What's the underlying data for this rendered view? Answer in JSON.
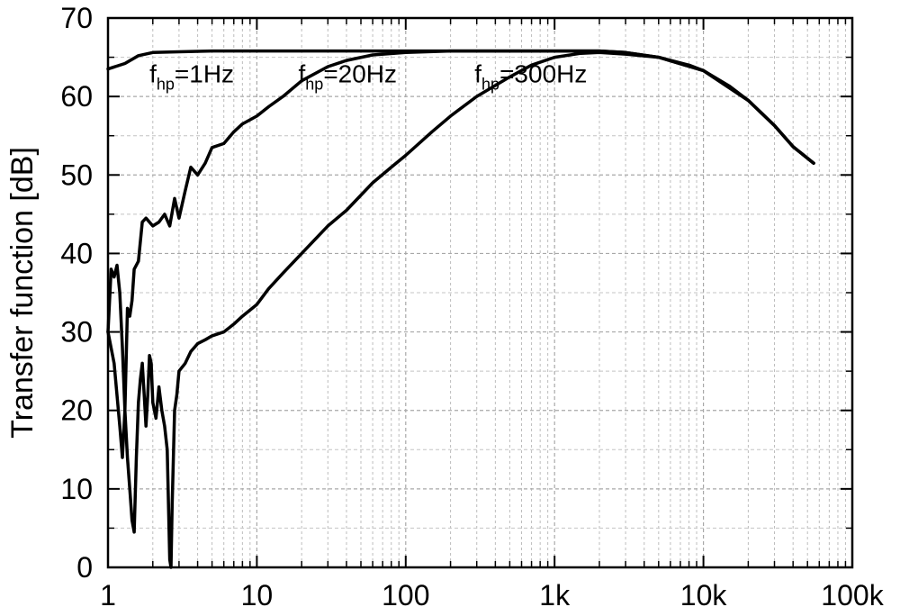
{
  "chart_data": {
    "type": "line",
    "title": "",
    "xlabel": "",
    "ylabel": "Transfer function [dB]",
    "xscale": "log",
    "xlim": [
      1,
      100000
    ],
    "ylim": [
      0,
      70
    ],
    "grid": true,
    "xticks": [
      {
        "value": 1,
        "label": "1"
      },
      {
        "value": 10,
        "label": "10"
      },
      {
        "value": 100,
        "label": "100"
      },
      {
        "value": 1000,
        "label": "1k"
      },
      {
        "value": 10000,
        "label": "10k"
      },
      {
        "value": 100000,
        "label": "100k"
      }
    ],
    "yticks": [
      0,
      10,
      20,
      30,
      40,
      50,
      60,
      70
    ],
    "series": [
      {
        "color": "#000000",
        "points": [
          [
            1,
            63.5
          ],
          [
            1.3,
            64.2
          ],
          [
            1.6,
            65.2
          ],
          [
            2,
            65.6
          ],
          [
            3,
            65.7
          ],
          [
            5,
            65.8
          ],
          [
            10,
            65.8
          ],
          [
            100,
            65.8
          ],
          [
            1000,
            65.8
          ],
          [
            2000,
            65.8
          ],
          [
            3000,
            65.6
          ],
          [
            5000,
            65.0
          ],
          [
            8000,
            64.0
          ],
          [
            10000,
            63.3
          ],
          [
            15000,
            61.3
          ],
          [
            20000,
            59.5
          ],
          [
            30000,
            56.3
          ],
          [
            40000,
            53.6
          ],
          [
            55000,
            51.5
          ]
        ]
      },
      {
        "color": "#000000",
        "points": [
          [
            1,
            30
          ],
          [
            1.1,
            26
          ],
          [
            1.2,
            18
          ],
          [
            1.25,
            14
          ],
          [
            1.3,
            20
          ],
          [
            1.35,
            33
          ],
          [
            1.4,
            32
          ],
          [
            1.45,
            34
          ],
          [
            1.5,
            38
          ],
          [
            1.6,
            39
          ],
          [
            1.7,
            44
          ],
          [
            1.8,
            44.5
          ],
          [
            2,
            43.5
          ],
          [
            2.2,
            44
          ],
          [
            2.4,
            45
          ],
          [
            2.6,
            43.5
          ],
          [
            2.8,
            47
          ],
          [
            3,
            44.5
          ],
          [
            3.3,
            48
          ],
          [
            3.6,
            51
          ],
          [
            4,
            50
          ],
          [
            4.5,
            51.5
          ],
          [
            5,
            53.5
          ],
          [
            6,
            54
          ],
          [
            7,
            55.5
          ],
          [
            8,
            56.5
          ],
          [
            10,
            57.5
          ],
          [
            12,
            58.7
          ],
          [
            15,
            60
          ],
          [
            20,
            62
          ],
          [
            30,
            63.8
          ],
          [
            40,
            64.6
          ],
          [
            60,
            65.3
          ],
          [
            100,
            65.6
          ],
          [
            200,
            65.8
          ],
          [
            1000,
            65.8
          ],
          [
            2000,
            65.8
          ],
          [
            3000,
            65.6
          ],
          [
            5000,
            65.0
          ],
          [
            10000,
            63.3
          ],
          [
            20000,
            59.5
          ],
          [
            30000,
            56.3
          ],
          [
            40000,
            53.6
          ],
          [
            55000,
            51.5
          ]
        ]
      },
      {
        "color": "#000000",
        "points": [
          [
            1,
            30
          ],
          [
            1.05,
            38
          ],
          [
            1.1,
            37
          ],
          [
            1.15,
            38.5
          ],
          [
            1.2,
            35
          ],
          [
            1.25,
            28
          ],
          [
            1.3,
            20
          ],
          [
            1.35,
            14
          ],
          [
            1.4,
            10
          ],
          [
            1.45,
            6
          ],
          [
            1.5,
            4.5
          ],
          [
            1.55,
            14
          ],
          [
            1.6,
            21
          ],
          [
            1.65,
            24
          ],
          [
            1.7,
            26
          ],
          [
            1.75,
            22
          ],
          [
            1.8,
            18
          ],
          [
            1.85,
            22
          ],
          [
            1.9,
            27
          ],
          [
            1.95,
            26
          ],
          [
            2,
            21
          ],
          [
            2.1,
            19
          ],
          [
            2.2,
            23
          ],
          [
            2.3,
            20
          ],
          [
            2.4,
            18
          ],
          [
            2.5,
            15
          ],
          [
            2.6,
            1
          ],
          [
            2.65,
            0
          ],
          [
            2.7,
            8
          ],
          [
            2.8,
            20
          ],
          [
            2.9,
            22
          ],
          [
            3,
            25
          ],
          [
            3.3,
            26
          ],
          [
            3.6,
            27.5
          ],
          [
            4,
            28.5
          ],
          [
            4.5,
            29
          ],
          [
            5,
            29.5
          ],
          [
            6,
            30
          ],
          [
            7,
            31
          ],
          [
            8,
            32
          ],
          [
            10,
            33.5
          ],
          [
            12,
            35.5
          ],
          [
            15,
            37.5
          ],
          [
            20,
            40
          ],
          [
            30,
            43.5
          ],
          [
            40,
            45.5
          ],
          [
            60,
            49
          ],
          [
            80,
            51
          ],
          [
            100,
            52.5
          ],
          [
            150,
            55.5
          ],
          [
            200,
            57.5
          ],
          [
            300,
            60
          ],
          [
            500,
            62.5
          ],
          [
            700,
            64
          ],
          [
            1000,
            65
          ],
          [
            1500,
            65.5
          ],
          [
            2000,
            65.6
          ],
          [
            3000,
            65.4
          ],
          [
            5000,
            65.0
          ],
          [
            10000,
            63.3
          ],
          [
            20000,
            59.5
          ],
          [
            30000,
            56.3
          ],
          [
            40000,
            53.6
          ],
          [
            55000,
            51.5
          ]
        ]
      }
    ],
    "annotations": [
      {
        "base": "f",
        "sub": "hp",
        "text": "=1Hz",
        "x": 1.9,
        "y": 61.8
      },
      {
        "base": "f",
        "sub": "hp",
        "text": "=20Hz",
        "x": 19,
        "y": 61.8
      },
      {
        "base": "f",
        "sub": "hp",
        "text": "=300Hz",
        "x": 290,
        "y": 61.8
      }
    ]
  }
}
